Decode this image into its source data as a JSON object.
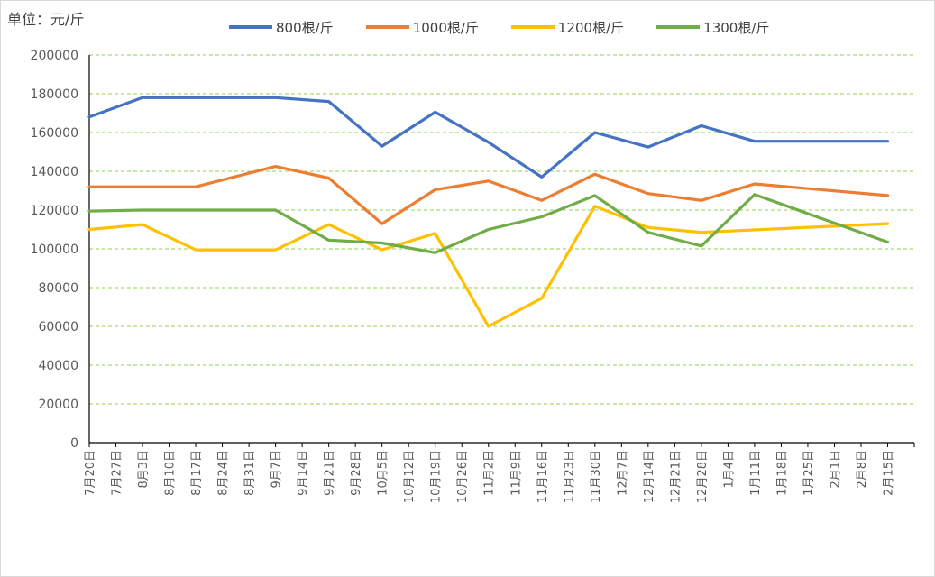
{
  "unit_label": "单位：元/斤",
  "chart_data": {
    "type": "line",
    "title": "",
    "ylabel": "单位：元/斤",
    "xlabel": "",
    "ylim": [
      0,
      200000
    ],
    "yticks": [
      0,
      20000,
      40000,
      60000,
      80000,
      100000,
      120000,
      140000,
      160000,
      180000,
      200000
    ],
    "grid": true,
    "legend_position": "top",
    "categories": [
      "7月20日",
      "7月27日",
      "8月3日",
      "8月10日",
      "8月17日",
      "8月24日",
      "8月31日",
      "9月7日",
      "9月14日",
      "9月21日",
      "9月28日",
      "10月5日",
      "10月12日",
      "10月19日",
      "10月26日",
      "11月2日",
      "11月9日",
      "11月16日",
      "11月23日",
      "11月30日",
      "12月7日",
      "12月14日",
      "12月21日",
      "12月28日",
      "1月4日",
      "1月11日",
      "1月18日",
      "1月25日",
      "2月1日",
      "2月8日",
      "2月15日"
    ],
    "series": [
      {
        "name": "800根/斤",
        "color": "#4472C4",
        "points": [
          [
            0,
            168000
          ],
          [
            2,
            178000
          ],
          [
            7,
            178000
          ],
          [
            9,
            176000
          ],
          [
            11,
            153000
          ],
          [
            13,
            170500
          ],
          [
            15,
            155000
          ],
          [
            17,
            137000
          ],
          [
            19,
            160000
          ],
          [
            21,
            152500
          ],
          [
            23,
            163500
          ],
          [
            25,
            155500
          ],
          [
            30,
            155500
          ]
        ]
      },
      {
        "name": "1000根/斤",
        "color": "#ED7D31",
        "points": [
          [
            0,
            132000
          ],
          [
            4,
            132000
          ],
          [
            7,
            142500
          ],
          [
            9,
            136500
          ],
          [
            11,
            113000
          ],
          [
            13,
            130500
          ],
          [
            15,
            135000
          ],
          [
            17,
            125000
          ],
          [
            19,
            138500
          ],
          [
            21,
            128500
          ],
          [
            23,
            125000
          ],
          [
            25,
            133500
          ],
          [
            30,
            127500
          ]
        ]
      },
      {
        "name": "1200根/斤",
        "color": "#FFC000",
        "points": [
          [
            0,
            110000
          ],
          [
            2,
            112500
          ],
          [
            4,
            99500
          ],
          [
            7,
            99500
          ],
          [
            9,
            112500
          ],
          [
            11,
            99500
          ],
          [
            13,
            108000
          ],
          [
            15,
            60000
          ],
          [
            17,
            74500
          ],
          [
            19,
            122000
          ],
          [
            21,
            111000
          ],
          [
            23,
            108500
          ],
          [
            30,
            113000
          ]
        ]
      },
      {
        "name": "1300根/斤",
        "color": "#70AD47",
        "points": [
          [
            0,
            119500
          ],
          [
            2,
            120000
          ],
          [
            7,
            120000
          ],
          [
            9,
            104500
          ],
          [
            11,
            103000
          ],
          [
            13,
            98000
          ],
          [
            15,
            110000
          ],
          [
            17,
            116500
          ],
          [
            19,
            127500
          ],
          [
            21,
            108500
          ],
          [
            23,
            101500
          ],
          [
            25,
            128000
          ],
          [
            30,
            103500
          ]
        ]
      }
    ]
  }
}
